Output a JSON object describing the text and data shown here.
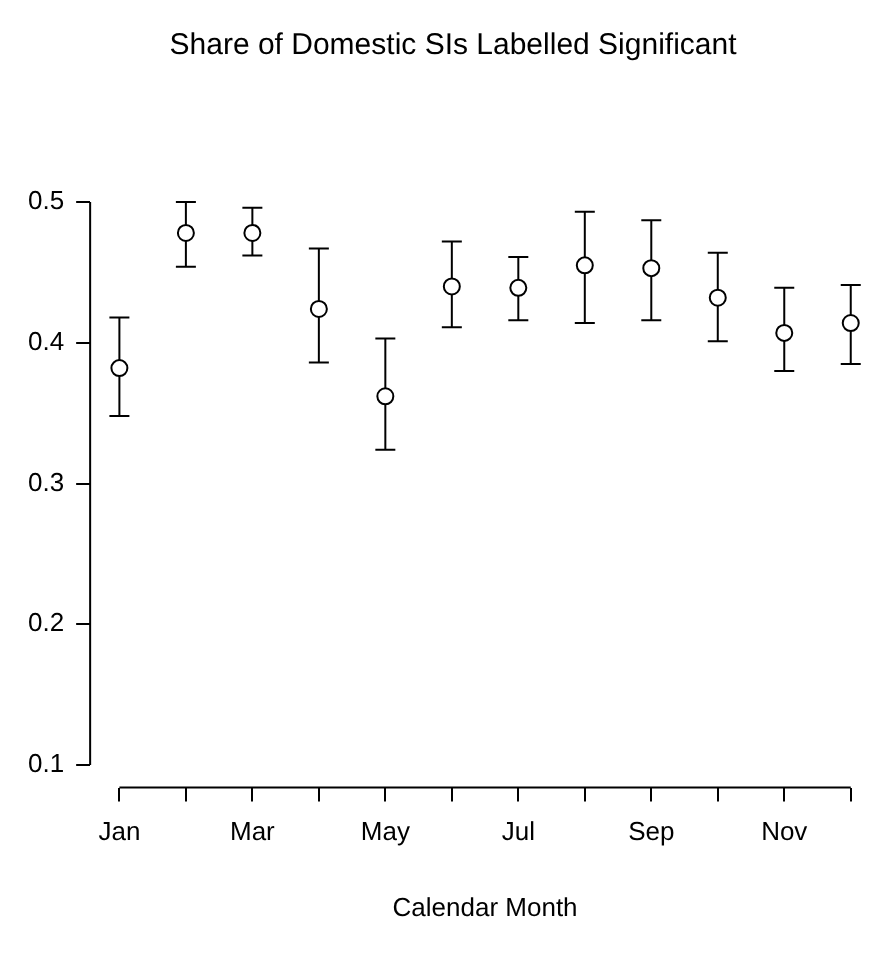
{
  "chart_data": {
    "type": "scatter",
    "title": "Share of Domestic SIs Labelled Significant",
    "xlabel": "Calendar Month",
    "categories": [
      "Jan",
      null,
      "Mar",
      null,
      "May",
      null,
      "Jul",
      null,
      "Sep",
      null,
      "Nov",
      null
    ],
    "values": [
      0.382,
      0.478,
      0.478,
      0.424,
      0.362,
      0.44,
      0.439,
      0.455,
      0.453,
      0.432,
      0.407,
      0.414
    ],
    "errors": [
      [
        0.348,
        0.418
      ],
      [
        0.454,
        0.5
      ],
      [
        0.462,
        0.496
      ],
      [
        0.386,
        0.467
      ],
      [
        0.324,
        0.403
      ],
      [
        0.411,
        0.472
      ],
      [
        0.416,
        0.461
      ],
      [
        0.414,
        0.493
      ],
      [
        0.416,
        0.487
      ],
      [
        0.401,
        0.464
      ],
      [
        0.38,
        0.439
      ],
      [
        0.385,
        0.441
      ]
    ],
    "color": "#000000",
    "marker": "circle",
    "ylim": [
      0.084,
      0.5
    ],
    "yticks": [
      0.1,
      0.2,
      0.3,
      0.4,
      0.5
    ],
    "grid": false,
    "legend": false
  }
}
